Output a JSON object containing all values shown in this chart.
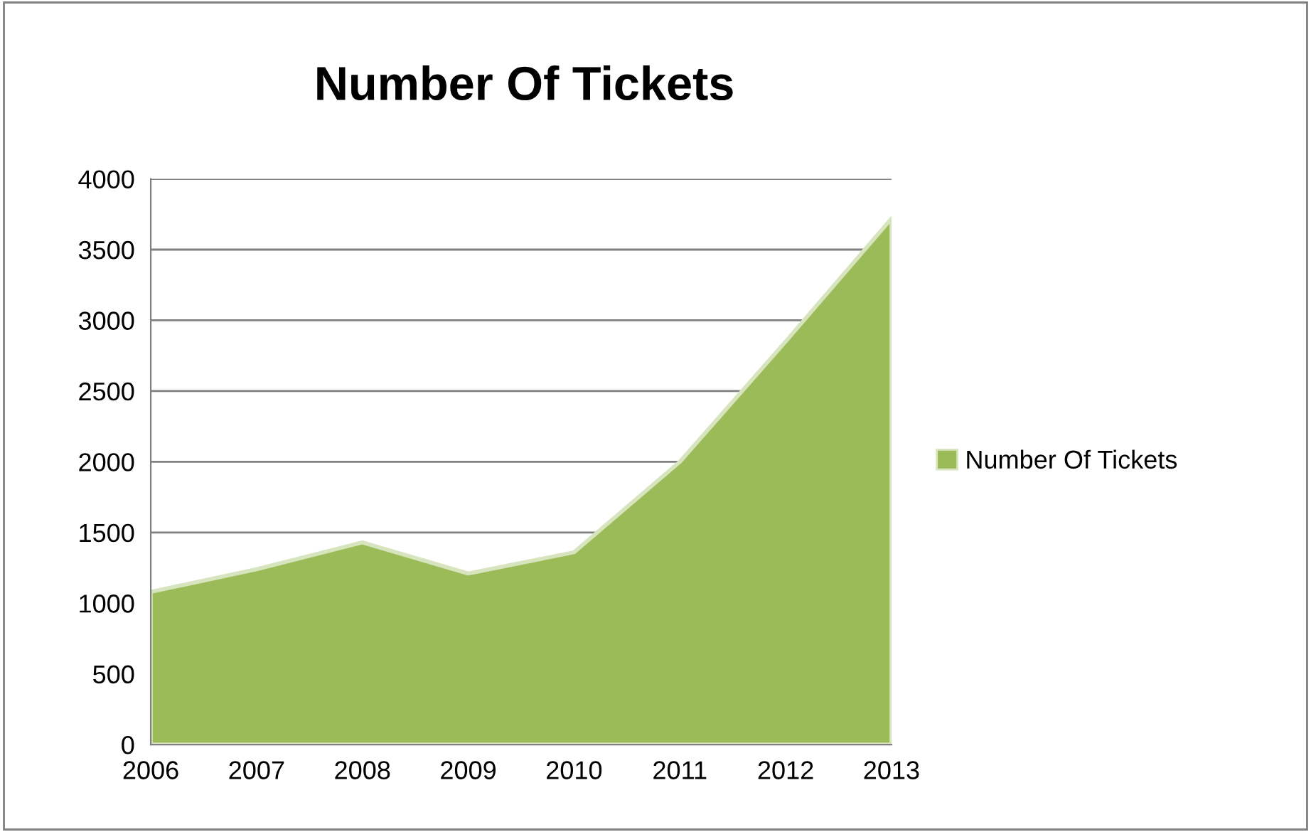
{
  "chart_data": {
    "type": "area",
    "title": "Number Of Tickets",
    "categories": [
      "2006",
      "2007",
      "2008",
      "2009",
      "2010",
      "2011",
      "2012",
      "2013"
    ],
    "series": [
      {
        "name": "Number Of Tickets",
        "color": "#9bbb59",
        "values": [
          1080,
          1240,
          1430,
          1210,
          1360,
          2000,
          2850,
          3720
        ]
      }
    ],
    "ylim": [
      0,
      4000
    ],
    "yticks": [
      0,
      500,
      1000,
      1500,
      2000,
      2500,
      3000,
      3500,
      4000
    ],
    "grid": "y",
    "legend": "right"
  }
}
